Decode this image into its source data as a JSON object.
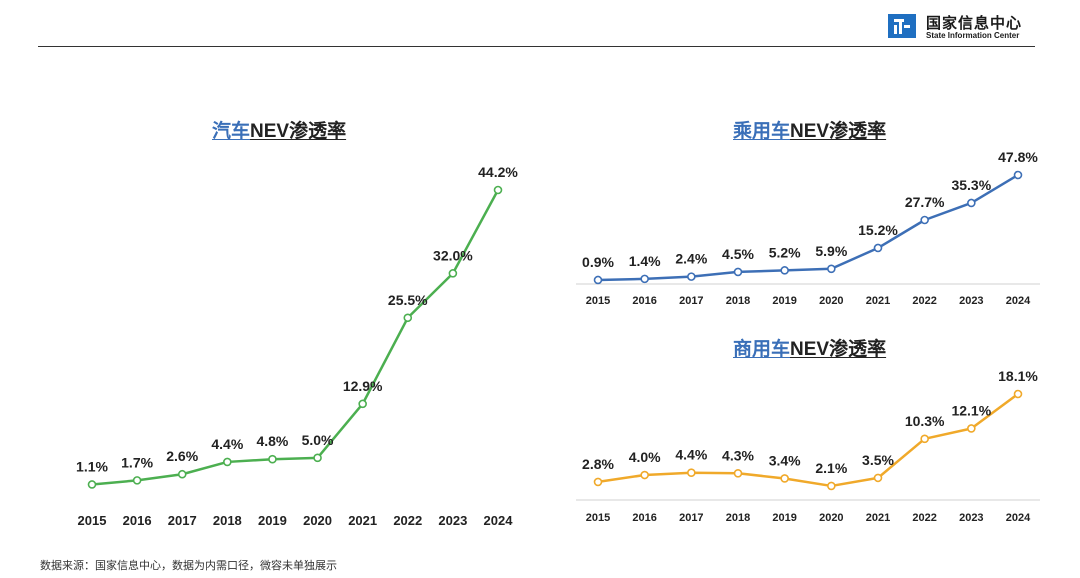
{
  "logo": {
    "cn": "国家信息中心",
    "en": "State Information Center",
    "brand_color": "#1f6fc1"
  },
  "footer": {
    "source_text": "数据来源：国家信息中心，数据为内需口径，微容未单独展示"
  },
  "chart_data": [
    {
      "type": "line",
      "title_highlight": "汽车",
      "title_rest": "NEV渗透率",
      "x": [
        "2015",
        "2016",
        "2017",
        "2018",
        "2019",
        "2020",
        "2021",
        "2022",
        "2023",
        "2024"
      ],
      "values": [
        1.1,
        1.7,
        2.6,
        4.4,
        4.8,
        5.0,
        12.9,
        25.5,
        32.0,
        44.2
      ],
      "labels": [
        "1.1%",
        "1.7%",
        "2.6%",
        "4.4%",
        "4.8%",
        "5.0%",
        "12.9%",
        "25.5%",
        "32.0%",
        "44.2%"
      ],
      "color": "#4caf50",
      "ylim": [
        0,
        48
      ]
    },
    {
      "type": "line",
      "title_highlight": "乘用车",
      "title_rest": "NEV渗透率",
      "x": [
        "2015",
        "2016",
        "2017",
        "2018",
        "2019",
        "2020",
        "2021",
        "2022",
        "2023",
        "2024"
      ],
      "values": [
        0.9,
        1.4,
        2.4,
        4.5,
        5.2,
        5.9,
        15.2,
        27.7,
        35.3,
        47.8
      ],
      "labels": [
        "0.9%",
        "1.4%",
        "2.4%",
        "4.5%",
        "5.2%",
        "5.9%",
        "15.2%",
        "27.7%",
        "35.3%",
        "47.8%"
      ],
      "color": "#3d6fb6",
      "ylim": [
        0,
        50
      ]
    },
    {
      "type": "line",
      "title_highlight": "商用车",
      "title_rest": "NEV渗透率",
      "x": [
        "2015",
        "2016",
        "2017",
        "2018",
        "2019",
        "2020",
        "2021",
        "2022",
        "2023",
        "2024"
      ],
      "values": [
        2.8,
        4.0,
        4.4,
        4.3,
        3.4,
        2.1,
        3.5,
        10.3,
        12.1,
        18.1
      ],
      "labels": [
        "2.8%",
        "4.0%",
        "4.4%",
        "4.3%",
        "3.4%",
        "2.1%",
        "3.5%",
        "10.3%",
        "12.1%",
        "18.1%"
      ],
      "color": "#f0a92a",
      "ylim": [
        0,
        20
      ]
    }
  ]
}
